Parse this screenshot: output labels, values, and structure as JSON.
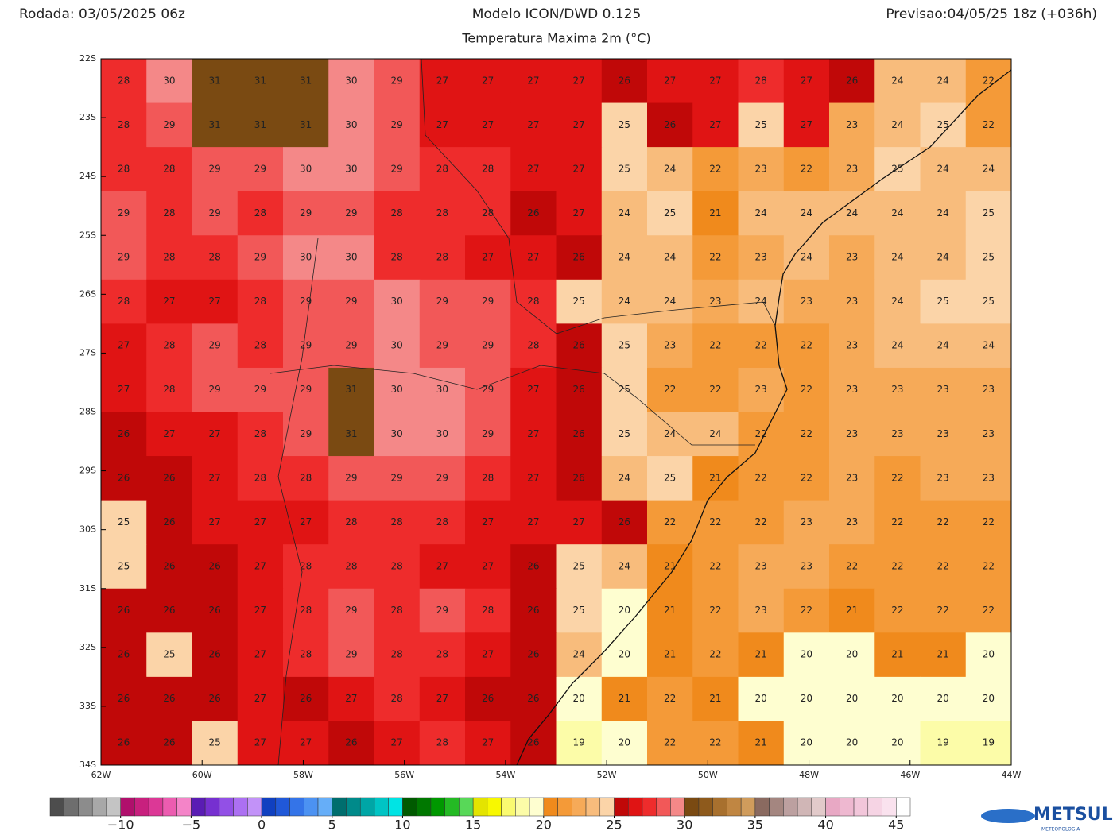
{
  "header": {
    "run": "Rodada: 03/05/2025 06z",
    "model": "Modelo ICON/DWD 0.125",
    "forecast": "Previsao:04/05/25 18z (+036h)",
    "variable": "Temperatura Maxima 2m (°C)"
  },
  "map": {
    "lonlim": [
      -62,
      -44
    ],
    "latlim": [
      -34,
      -22
    ],
    "lon_ticks": [
      {
        "value": -62,
        "label": "62W"
      },
      {
        "value": -60,
        "label": "60W"
      },
      {
        "value": -58,
        "label": "58W"
      },
      {
        "value": -56,
        "label": "56W"
      },
      {
        "value": -54,
        "label": "54W"
      },
      {
        "value": -52,
        "label": "52W"
      },
      {
        "value": -50,
        "label": "50W"
      },
      {
        "value": -48,
        "label": "48W"
      },
      {
        "value": -46,
        "label": "46W"
      },
      {
        "value": -44,
        "label": "44W"
      }
    ],
    "lat_ticks": [
      {
        "value": -22,
        "label": "22S"
      },
      {
        "value": -23,
        "label": "23S"
      },
      {
        "value": -24,
        "label": "24S"
      },
      {
        "value": -25,
        "label": "25S"
      },
      {
        "value": -26,
        "label": "26S"
      },
      {
        "value": -27,
        "label": "27S"
      },
      {
        "value": -28,
        "label": "28S"
      },
      {
        "value": -29,
        "label": "29S"
      },
      {
        "value": -30,
        "label": "30S"
      },
      {
        "value": -31,
        "label": "31S"
      },
      {
        "value": -32,
        "label": "32S"
      },
      {
        "value": -33,
        "label": "33S"
      },
      {
        "value": -34,
        "label": "34S"
      }
    ],
    "values": [
      [
        28,
        30,
        31,
        31,
        31,
        30,
        29,
        27,
        27,
        27,
        27,
        26,
        27,
        27,
        28,
        27,
        26,
        24,
        24,
        22
      ],
      [
        28,
        29,
        31,
        31,
        31,
        30,
        29,
        27,
        27,
        27,
        27,
        25,
        26,
        27,
        25,
        27,
        23,
        24,
        25,
        22
      ],
      [
        28,
        28,
        29,
        29,
        30,
        30,
        29,
        28,
        28,
        27,
        27,
        25,
        24,
        22,
        23,
        22,
        23,
        25,
        24,
        24
      ],
      [
        29,
        28,
        29,
        28,
        29,
        29,
        28,
        28,
        28,
        26,
        27,
        24,
        25,
        21,
        24,
        24,
        24,
        24,
        24,
        25
      ],
      [
        29,
        28,
        28,
        29,
        30,
        30,
        28,
        28,
        27,
        27,
        26,
        24,
        24,
        22,
        23,
        24,
        23,
        24,
        24,
        25
      ],
      [
        28,
        27,
        27,
        28,
        29,
        29,
        30,
        29,
        29,
        28,
        25,
        24,
        24,
        23,
        24,
        23,
        23,
        24,
        25,
        25
      ],
      [
        27,
        28,
        29,
        28,
        29,
        29,
        30,
        29,
        29,
        28,
        26,
        25,
        23,
        22,
        22,
        22,
        23,
        24,
        24,
        24
      ],
      [
        27,
        28,
        29,
        29,
        29,
        31,
        30,
        30,
        29,
        27,
        26,
        25,
        22,
        22,
        23,
        22,
        23,
        23,
        23,
        23
      ],
      [
        26,
        27,
        27,
        28,
        29,
        31,
        30,
        30,
        29,
        27,
        26,
        25,
        24,
        24,
        22,
        22,
        23,
        23,
        23,
        23
      ],
      [
        26,
        26,
        27,
        28,
        28,
        29,
        29,
        29,
        28,
        27,
        26,
        24,
        25,
        21,
        22,
        22,
        23,
        22,
        23,
        23
      ],
      [
        25,
        26,
        27,
        27,
        27,
        28,
        28,
        28,
        27,
        27,
        27,
        26,
        22,
        22,
        22,
        23,
        23,
        22,
        22,
        22
      ],
      [
        25,
        26,
        26,
        27,
        28,
        28,
        28,
        27,
        27,
        26,
        25,
        24,
        21,
        22,
        23,
        23,
        22,
        22,
        22,
        22
      ],
      [
        26,
        26,
        26,
        27,
        28,
        29,
        28,
        29,
        28,
        26,
        25,
        20,
        21,
        22,
        23,
        22,
        21,
        22,
        22,
        22
      ],
      [
        26,
        25,
        26,
        27,
        28,
        29,
        28,
        28,
        27,
        26,
        24,
        20,
        21,
        22,
        21,
        20,
        20,
        21,
        21,
        20
      ],
      [
        26,
        26,
        26,
        27,
        26,
        27,
        28,
        27,
        26,
        26,
        20,
        21,
        22,
        21,
        20,
        20,
        20,
        20,
        20,
        20
      ],
      [
        26,
        26,
        25,
        27,
        27,
        26,
        27,
        28,
        27,
        26,
        19,
        20,
        22,
        22,
        21,
        20,
        20,
        20,
        19,
        19
      ]
    ]
  },
  "colorbar": {
    "min": -15,
    "max": 46,
    "colors": [
      "#4d4d4d",
      "#6e6e6e",
      "#8c8c8c",
      "#a8a8a8",
      "#c4c4c4",
      "#b0106c",
      "#c8207e",
      "#dc3896",
      "#ec5cb0",
      "#f484c8",
      "#5a1cb4",
      "#7630d0",
      "#9250e6",
      "#ac70f2",
      "#c292f8",
      "#1040c0",
      "#2058d8",
      "#3474e8",
      "#4c92f2",
      "#66aef8",
      "#006e6e",
      "#008a8a",
      "#00a6a6",
      "#00c4c4",
      "#00e4e4",
      "#005a00",
      "#007800",
      "#009800",
      "#24ba24",
      "#58d858",
      "#e4e400",
      "#f8f800",
      "#fafa70",
      "#fcfca8",
      "#fefed0",
      "#f08a1c",
      "#f49a38",
      "#f6aa58",
      "#f8bc7c",
      "#fbd4a8",
      "#c00808",
      "#e01414",
      "#ee2c2c",
      "#f25858",
      "#f48888",
      "#7a4a12",
      "#8e5a1c",
      "#a8702e",
      "#c08642",
      "#d09c5c",
      "#8a6a60",
      "#a48680",
      "#bca0a0",
      "#d0b6b6",
      "#e2caca",
      "#e8a8c4",
      "#eeb8d0",
      "#f2c6da",
      "#f6d4e4",
      "#fae2ee",
      "#ffffff"
    ],
    "ticks": [
      {
        "value": -10,
        "label": "−10"
      },
      {
        "value": -5,
        "label": "−5"
      },
      0,
      5,
      10,
      15,
      20,
      25,
      30,
      35,
      40,
      45
    ]
  },
  "logo": {
    "name": "METSUL",
    "sub": "METEOROLOGIA"
  }
}
